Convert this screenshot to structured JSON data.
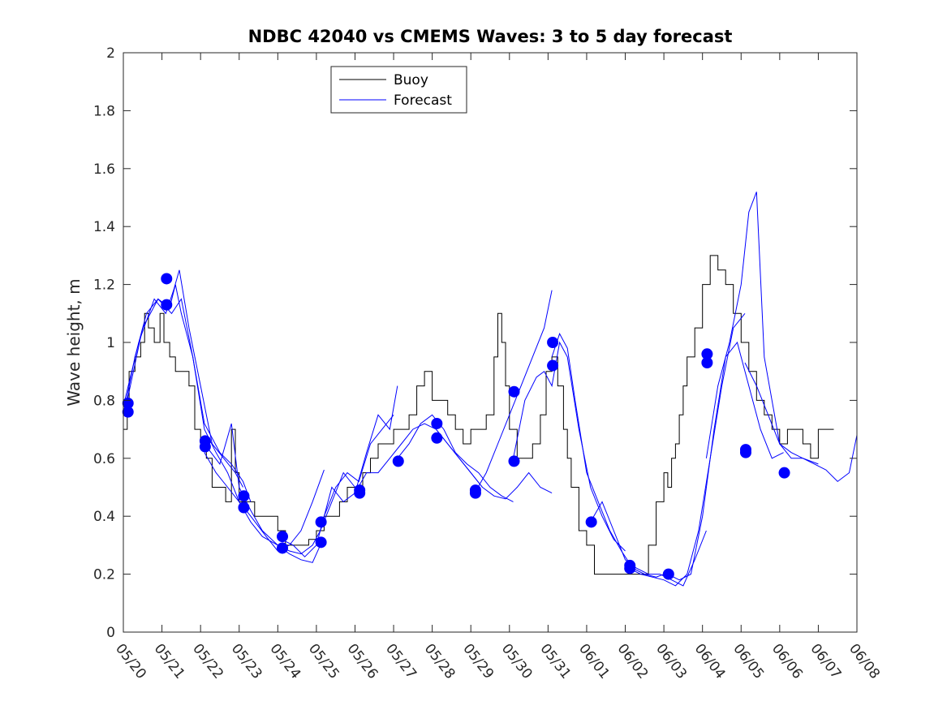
{
  "chart_data": {
    "type": "line",
    "title": "NDBC 42040 vs CMEMS Waves: 3 to 5 day forecast",
    "ylabel": "Wave height, m",
    "xlabel": "",
    "xlim_days": [
      0,
      19
    ],
    "ylim": [
      0,
      2
    ],
    "yticks": [
      0,
      0.2,
      0.4,
      0.6,
      0.8,
      1,
      1.2,
      1.4,
      1.6,
      1.8,
      2
    ],
    "ytick_labels": [
      "0",
      "0.2",
      "0.4",
      "0.6",
      "0.8",
      "1",
      "1.2",
      "1.4",
      "1.6",
      "1.8",
      "2"
    ],
    "xtick_labels": [
      "05/20",
      "05/21",
      "05/22",
      "05/23",
      "05/24",
      "05/25",
      "05/26",
      "05/27",
      "05/28",
      "05/29",
      "05/30",
      "05/31",
      "06/01",
      "06/02",
      "06/03",
      "06/04",
      "06/05",
      "06/06",
      "06/07",
      "06/08"
    ],
    "grid": false,
    "legend": {
      "position": "top-left-center",
      "entries": [
        {
          "label": "Buoy",
          "color": "#000000"
        },
        {
          "label": "Forecast",
          "color": "#0000ff"
        }
      ]
    },
    "colors": {
      "buoy": "#000000",
      "forecast": "#0000ff",
      "markers": "#0000ff"
    },
    "series": [
      {
        "name": "Buoy",
        "x": [
          0,
          0.1,
          0.15,
          0.3,
          0.45,
          0.55,
          0.65,
          0.8,
          0.95,
          1.05,
          1.2,
          1.35,
          1.5,
          1.7,
          1.85,
          2.0,
          2.15,
          2.3,
          2.5,
          2.65,
          2.8,
          2.9,
          3.0,
          3.2,
          3.4,
          3.6,
          3.8,
          4.0,
          4.2,
          4.4,
          4.6,
          4.8,
          5.0,
          5.2,
          5.4,
          5.6,
          5.8,
          6.0,
          6.2,
          6.4,
          6.6,
          6.8,
          7.0,
          7.2,
          7.4,
          7.6,
          7.8,
          8.0,
          8.2,
          8.4,
          8.6,
          8.8,
          9.0,
          9.2,
          9.4,
          9.6,
          9.7,
          9.8,
          9.9,
          10.0,
          10.2,
          10.4,
          10.6,
          10.8,
          10.95,
          11.1,
          11.25,
          11.4,
          11.5,
          11.6,
          11.8,
          12.0,
          12.2,
          12.4,
          12.6,
          12.8,
          13.0,
          13.2,
          13.4,
          13.6,
          13.8,
          14.0,
          14.1,
          14.2,
          14.3,
          14.4,
          14.5,
          14.6,
          14.8,
          15.0,
          15.2,
          15.4,
          15.6,
          15.8,
          16.0,
          16.2,
          16.4,
          16.6,
          16.8,
          17.0,
          17.2,
          17.4,
          17.6,
          17.8,
          18.0,
          18.2,
          18.4
        ],
        "values": [
          0.7,
          0.8,
          0.9,
          0.95,
          1.0,
          1.1,
          1.05,
          1.0,
          1.1,
          1.0,
          0.95,
          0.9,
          0.9,
          0.85,
          0.7,
          0.65,
          0.6,
          0.5,
          0.5,
          0.45,
          0.7,
          0.55,
          0.45,
          0.45,
          0.4,
          0.4,
          0.4,
          0.35,
          0.3,
          0.3,
          0.3,
          0.32,
          0.35,
          0.4,
          0.4,
          0.45,
          0.5,
          0.5,
          0.55,
          0.6,
          0.65,
          0.65,
          0.7,
          0.7,
          0.75,
          0.85,
          0.9,
          0.8,
          0.8,
          0.75,
          0.7,
          0.65,
          0.7,
          0.7,
          0.75,
          0.95,
          1.1,
          1.0,
          0.85,
          0.7,
          0.6,
          0.6,
          0.65,
          0.75,
          0.9,
          0.95,
          0.85,
          0.7,
          0.6,
          0.5,
          0.35,
          0.3,
          0.2,
          0.2,
          0.2,
          0.2,
          0.2,
          0.2,
          0.2,
          0.3,
          0.45,
          0.55,
          0.5,
          0.6,
          0.65,
          0.75,
          0.85,
          0.95,
          1.05,
          1.2,
          1.3,
          1.25,
          1.2,
          1.1,
          1.0,
          0.9,
          0.8,
          0.75,
          0.7,
          0.65,
          0.7,
          0.7,
          0.65,
          0.6,
          0.7,
          0.7,
          0.7
        ]
      },
      {
        "name": "Forecast",
        "x": [
          0,
          0.3,
          0.6,
          0.9,
          1.2,
          1.35,
          1.5,
          1.8,
          2.1,
          2.4,
          2.7,
          3.0
        ],
        "values": [
          0.75,
          0.95,
          1.1,
          1.15,
          1.12,
          1.2,
          1.1,
          0.95,
          0.7,
          0.62,
          0.55,
          0.45
        ]
      },
      {
        "x": [
          0,
          0.4,
          0.8,
          1.1,
          1.3,
          1.45,
          1.7,
          2.0,
          2.3,
          2.6,
          2.9,
          3.1
        ],
        "values": [
          0.78,
          1.0,
          1.15,
          1.1,
          1.18,
          1.25,
          1.05,
          0.85,
          0.65,
          0.6,
          0.55,
          0.5
        ]
      },
      {
        "x": [
          0.1,
          0.5,
          0.9,
          1.25,
          1.5,
          1.8,
          2.1,
          2.5,
          2.8,
          3.1,
          3.3
        ],
        "values": [
          0.8,
          1.05,
          1.15,
          1.1,
          1.15,
          0.95,
          0.72,
          0.62,
          0.58,
          0.52,
          0.45
        ]
      },
      {
        "x": [
          2.1,
          2.5,
          2.8,
          3.0,
          3.3,
          3.6,
          4.0,
          4.3,
          4.6,
          4.9,
          5.1
        ],
        "values": [
          0.65,
          0.58,
          0.72,
          0.5,
          0.42,
          0.35,
          0.3,
          0.27,
          0.25,
          0.24,
          0.3
        ]
      },
      {
        "x": [
          2.1,
          2.4,
          2.7,
          3.0,
          3.3,
          3.7,
          4.0,
          4.3,
          4.6,
          4.9,
          5.2
        ],
        "values": [
          0.62,
          0.55,
          0.5,
          0.45,
          0.4,
          0.33,
          0.28,
          0.3,
          0.35,
          0.45,
          0.56
        ]
      },
      {
        "x": [
          3.0,
          3.3,
          3.6,
          4.0,
          4.3,
          4.6,
          4.9,
          5.1,
          5.4,
          5.7,
          6.0
        ],
        "values": [
          0.45,
          0.38,
          0.33,
          0.3,
          0.28,
          0.27,
          0.3,
          0.35,
          0.45,
          0.55,
          0.5
        ]
      },
      {
        "x": [
          4.1,
          4.4,
          4.7,
          5.0,
          5.2,
          5.5,
          5.8,
          6.1,
          6.4,
          6.7,
          7.0
        ],
        "values": [
          0.32,
          0.3,
          0.26,
          0.3,
          0.4,
          0.5,
          0.55,
          0.52,
          0.65,
          0.7,
          0.75
        ]
      },
      {
        "x": [
          5.1,
          5.4,
          5.7,
          6.0,
          6.3,
          6.6,
          6.9,
          7.1
        ],
        "values": [
          0.35,
          0.5,
          0.45,
          0.48,
          0.62,
          0.75,
          0.7,
          0.85
        ]
      },
      {
        "x": [
          6.0,
          6.3,
          6.6,
          6.9,
          7.2,
          7.5,
          7.8,
          8.1,
          8.4,
          8.7,
          9.0,
          9.3
        ],
        "values": [
          0.48,
          0.55,
          0.55,
          0.6,
          0.65,
          0.7,
          0.72,
          0.7,
          0.65,
          0.6,
          0.55,
          0.5
        ]
      },
      {
        "x": [
          7.1,
          7.4,
          7.7,
          8.0,
          8.3,
          8.6,
          8.9,
          9.2,
          9.5,
          9.8,
          10.1
        ],
        "values": [
          0.6,
          0.65,
          0.72,
          0.75,
          0.7,
          0.62,
          0.58,
          0.55,
          0.5,
          0.47,
          0.45
        ]
      },
      {
        "x": [
          8.1,
          8.4,
          8.7,
          9.0,
          9.3,
          9.6,
          9.9,
          10.2,
          10.5,
          10.8,
          11.1
        ],
        "values": [
          0.7,
          0.65,
          0.6,
          0.55,
          0.5,
          0.47,
          0.46,
          0.5,
          0.55,
          0.5,
          0.48
        ]
      },
      {
        "x": [
          9.1,
          9.4,
          9.7,
          10.0,
          10.3,
          10.6,
          10.9,
          11.1
        ],
        "values": [
          0.48,
          0.55,
          0.65,
          0.75,
          0.85,
          0.95,
          1.05,
          1.18
        ]
      },
      {
        "x": [
          10.1,
          10.4,
          10.7,
          10.9,
          11.1,
          11.3,
          11.5,
          11.8,
          12.1,
          12.4,
          12.7,
          13.0
        ],
        "values": [
          0.6,
          0.8,
          0.88,
          0.9,
          0.85,
          1.0,
          0.95,
          0.7,
          0.5,
          0.4,
          0.32,
          0.28
        ]
      },
      {
        "x": [
          11.1,
          11.3,
          11.5,
          11.7,
          12.0,
          12.3,
          12.6,
          12.9,
          13.2,
          13.5,
          13.8,
          14.0
        ],
        "values": [
          0.95,
          1.03,
          0.98,
          0.8,
          0.55,
          0.45,
          0.35,
          0.28,
          0.22,
          0.2,
          0.19,
          0.2
        ]
      },
      {
        "x": [
          12.1,
          12.4,
          12.7,
          13.0,
          13.3,
          13.6,
          13.9,
          14.2,
          14.5,
          14.8,
          15.1
        ],
        "values": [
          0.38,
          0.45,
          0.35,
          0.25,
          0.22,
          0.2,
          0.2,
          0.18,
          0.16,
          0.25,
          0.35
        ]
      },
      {
        "x": [
          13.1,
          13.4,
          13.7,
          14.0,
          14.3,
          14.6,
          14.9,
          15.2,
          15.5,
          15.8,
          16.1
        ],
        "values": [
          0.22,
          0.2,
          0.19,
          0.18,
          0.16,
          0.2,
          0.35,
          0.6,
          0.85,
          1.05,
          1.1
        ]
      },
      {
        "x": [
          14.1,
          14.4,
          14.7,
          15.0,
          15.3,
          15.6,
          15.9,
          16.2,
          16.5,
          16.8,
          17.1
        ],
        "values": [
          0.2,
          0.18,
          0.2,
          0.4,
          0.7,
          0.95,
          1.0,
          0.85,
          0.7,
          0.6,
          0.62
        ]
      },
      {
        "x": [
          15.1,
          15.4,
          15.7,
          16.0,
          16.2,
          16.4,
          16.6,
          16.8,
          17.0,
          17.3,
          17.6,
          18.0
        ],
        "values": [
          0.6,
          0.85,
          1.0,
          1.2,
          1.45,
          1.52,
          0.95,
          0.8,
          0.65,
          0.6,
          0.6,
          0.58
        ]
      },
      {
        "x": [
          16.1,
          16.4,
          16.7,
          17.0,
          17.3,
          17.6,
          17.9,
          18.2,
          18.5,
          18.8,
          19.0
        ],
        "values": [
          0.93,
          0.85,
          0.75,
          0.65,
          0.62,
          0.6,
          0.58,
          0.56,
          0.52,
          0.55,
          0.68
        ]
      }
    ],
    "markers": {
      "x": [
        0.12,
        0.12,
        1.12,
        1.12,
        2.12,
        2.12,
        3.12,
        3.12,
        4.12,
        4.12,
        5.12,
        5.12,
        6.12,
        6.12,
        7.12,
        8.12,
        8.12,
        9.12,
        9.12,
        10.12,
        10.12,
        11.12,
        11.12,
        12.12,
        13.12,
        13.12,
        14.12,
        15.12,
        15.12,
        16.12,
        16.12,
        17.12
      ],
      "values": [
        0.79,
        0.76,
        1.22,
        1.13,
        0.66,
        0.64,
        0.47,
        0.43,
        0.33,
        0.29,
        0.38,
        0.31,
        0.49,
        0.48,
        0.59,
        0.72,
        0.67,
        0.49,
        0.48,
        0.83,
        0.59,
        1.0,
        0.92,
        0.38,
        0.23,
        0.22,
        0.2,
        0.96,
        0.93,
        0.63,
        0.62,
        0.55
      ]
    }
  }
}
